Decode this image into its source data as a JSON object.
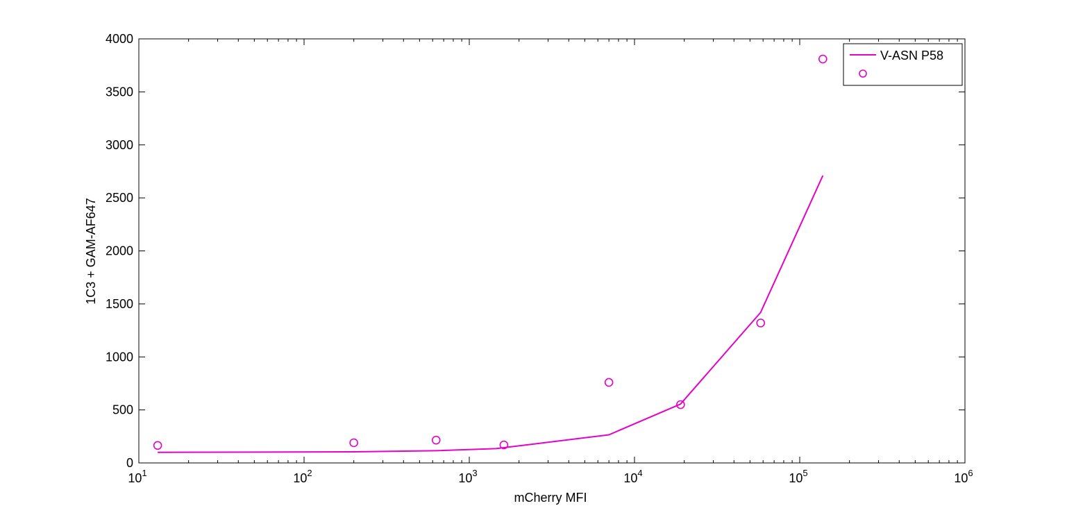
{
  "colors": {
    "series": "#e600c8",
    "axis": "#000000",
    "background": "#ffffff"
  },
  "chart_data": {
    "type": "line",
    "title": "",
    "xlabel": "mCherry MFI",
    "ylabel": "1C3 + GAM-AF647",
    "xscale": "log",
    "xlim": [
      10,
      1000000
    ],
    "ylim": [
      0,
      4000
    ],
    "grid": false,
    "legend_placement": "top-right",
    "x_ticks": [
      {
        "value": 10,
        "base": "10",
        "exp": "1"
      },
      {
        "value": 100,
        "base": "10",
        "exp": "2"
      },
      {
        "value": 1000,
        "base": "10",
        "exp": "3"
      },
      {
        "value": 10000,
        "base": "10",
        "exp": "4"
      },
      {
        "value": 100000,
        "base": "10",
        "exp": "5"
      },
      {
        "value": 1000000,
        "base": "10",
        "exp": "6"
      }
    ],
    "y_ticks": [
      0,
      500,
      1000,
      1500,
      2000,
      2500,
      3000,
      3500,
      4000
    ],
    "series": [
      {
        "name": "V-ASN P58",
        "style": "line",
        "x": [
          13,
          200,
          630,
          1450,
          7000,
          19000,
          58000,
          138000
        ],
        "y": [
          100,
          105,
          115,
          135,
          265,
          555,
          1420,
          2710
        ]
      },
      {
        "name": "",
        "style": "marker-circle",
        "x": [
          13,
          200,
          630,
          1620,
          7000,
          19000,
          58000,
          138000
        ],
        "y": [
          165,
          190,
          215,
          170,
          760,
          550,
          1320,
          3810
        ]
      }
    ]
  }
}
